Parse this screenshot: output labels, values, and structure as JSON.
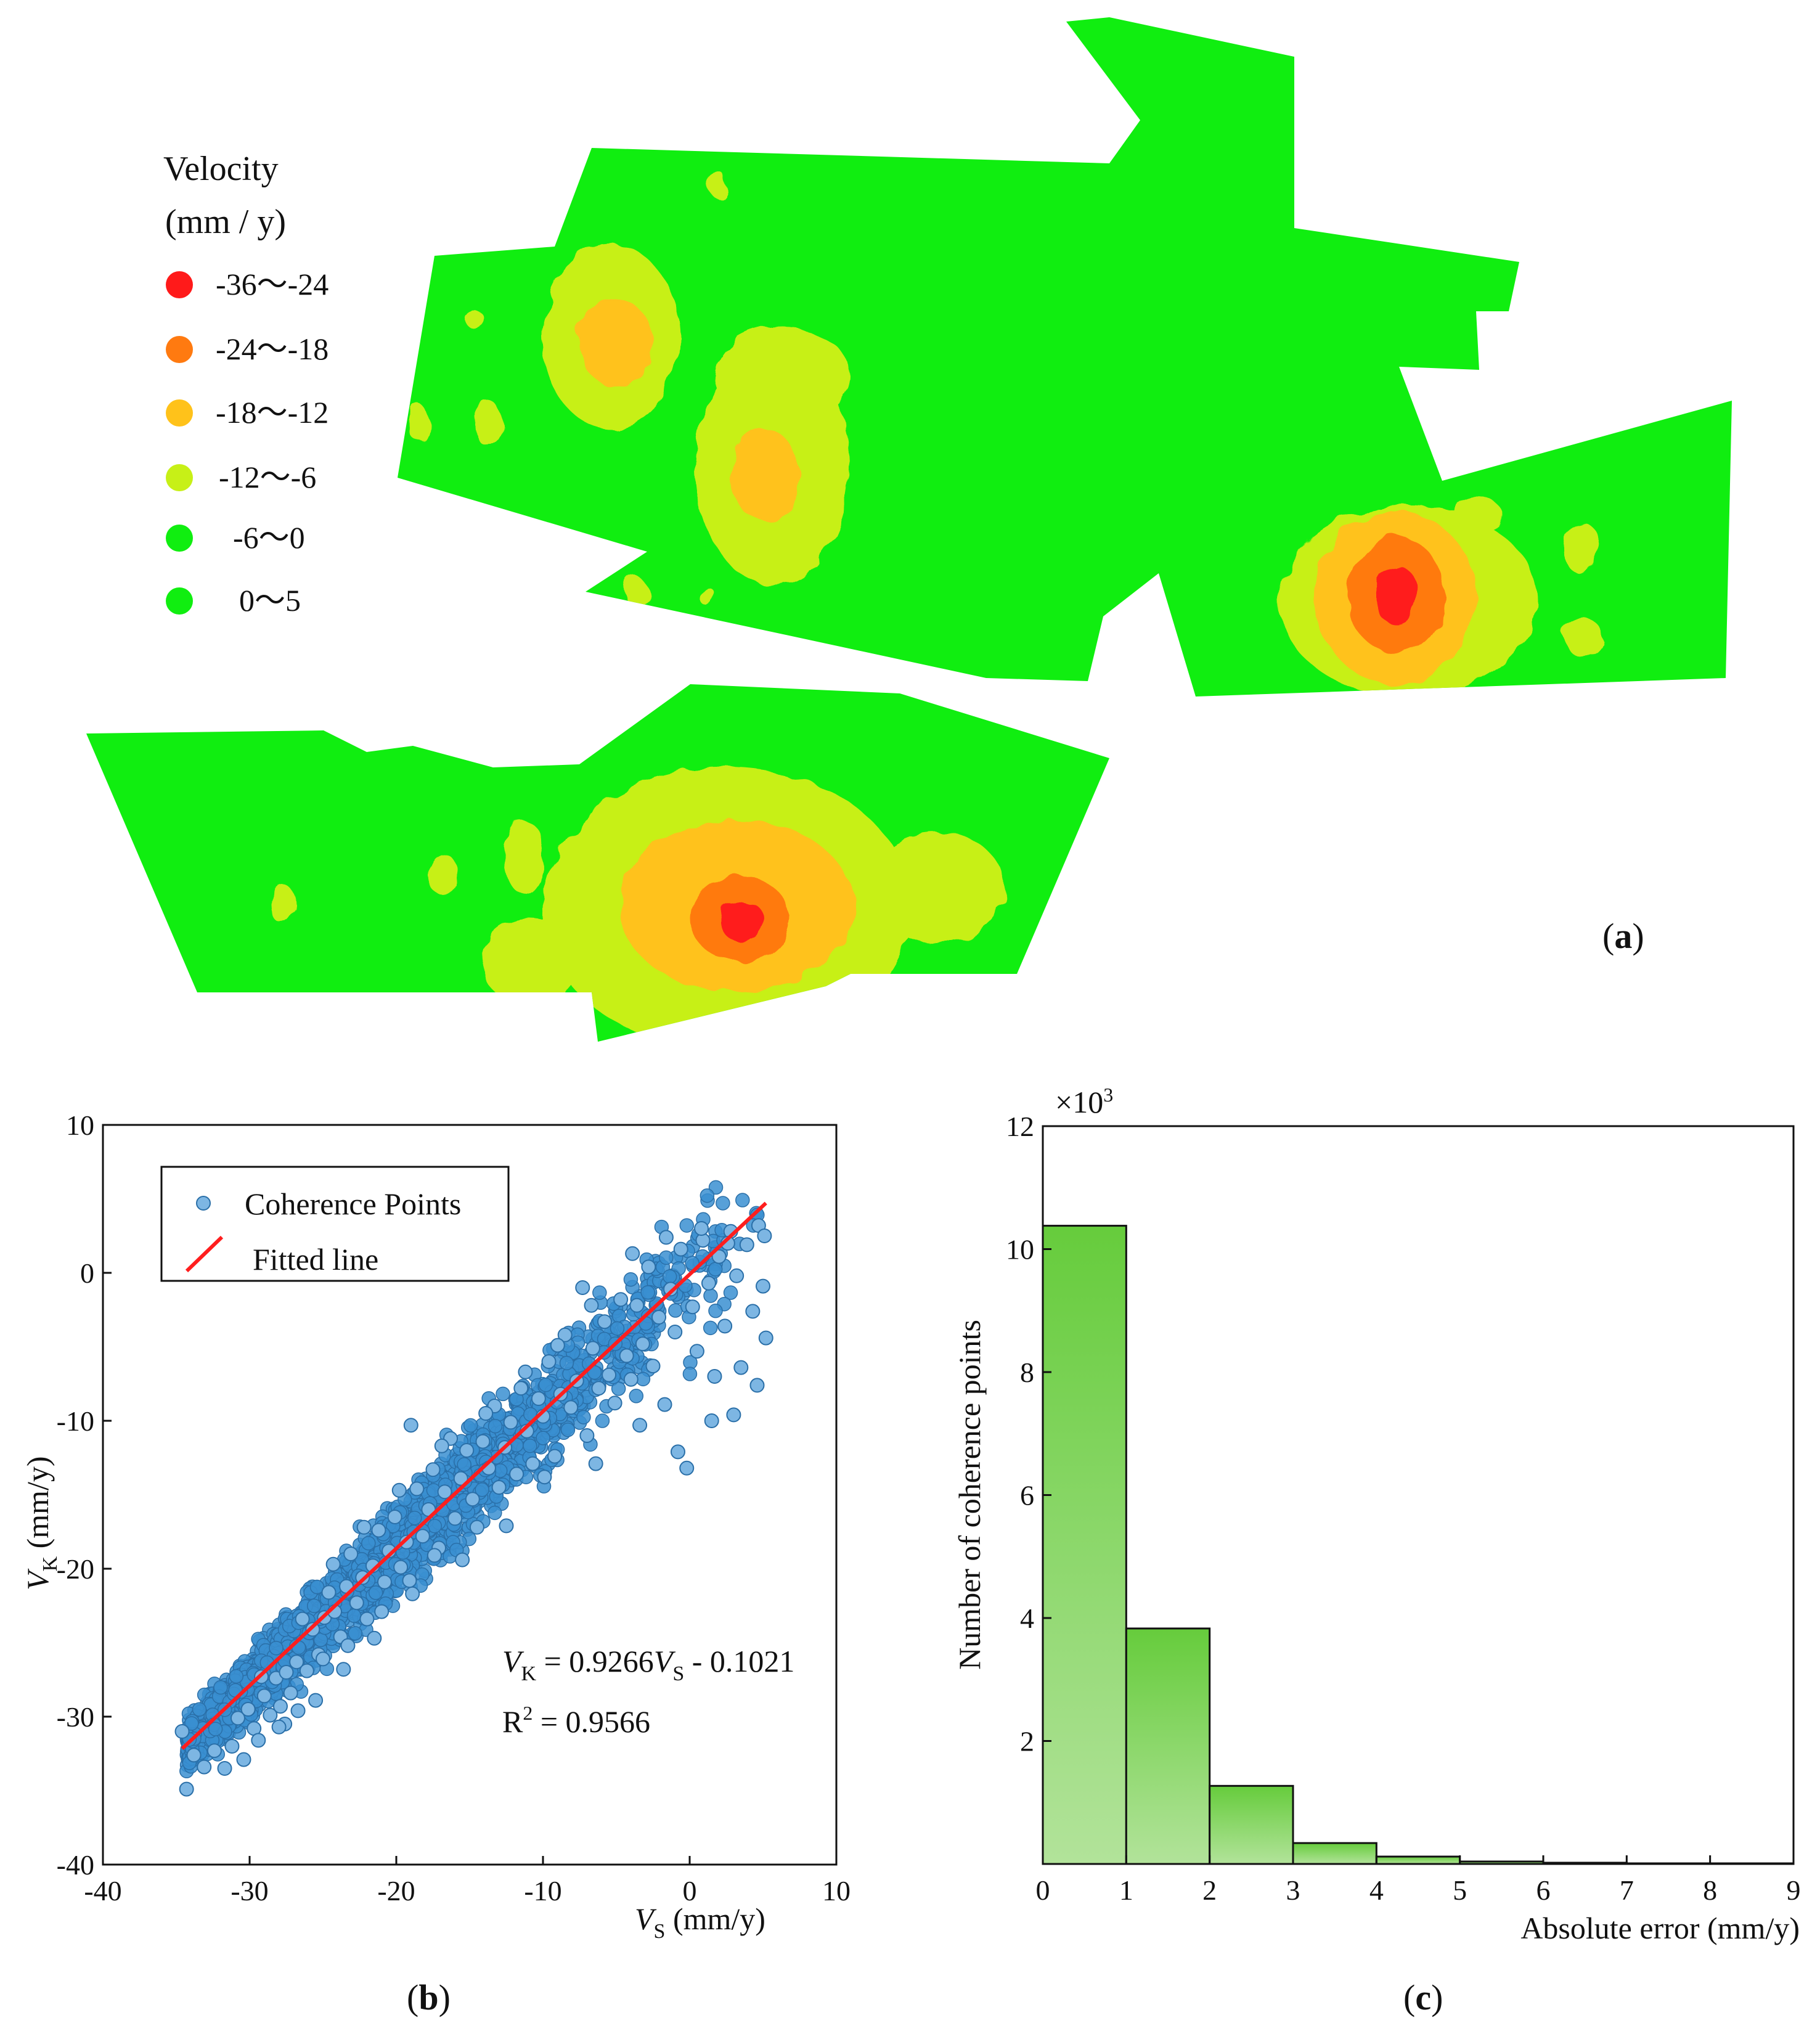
{
  "panel_a": {
    "label_open": "(",
    "label_letter": "a",
    "label_close": ")",
    "legend": {
      "title_line1": "Velocity",
      "title_line2": "(mm / y)",
      "items": [
        {
          "label": "-36～-24",
          "color": "#ff1a1a"
        },
        {
          "label": "-24～-18",
          "color": "#ff7a10"
        },
        {
          "label": "-18～-12",
          "color": "#ffc21a"
        },
        {
          "label": "-12～-6",
          "color": "#c7f017"
        },
        {
          "label": "-6～0",
          "color": "#10ee10"
        },
        {
          "label": "0～5",
          "color": "#10ee10"
        }
      ]
    },
    "colors": {
      "base": "#10ee10",
      "c_m12_6": "#c7f017",
      "c_m18_12": "#ffc21a",
      "c_m24_18": "#ff7a10",
      "c_m36_24": "#ff1a1a"
    }
  },
  "chart_data": [
    {
      "type": "scatter",
      "panel_label_open": "(",
      "panel_label_letter": "b",
      "panel_label_close": ")",
      "xlabel_main": "V",
      "xlabel_sub": "S",
      "xlabel_unit": " (mm/y)",
      "ylabel_main": "V",
      "ylabel_sub": "K",
      "ylabel_unit": " (mm/y)",
      "xlim": [
        -40,
        10
      ],
      "ylim": [
        -40,
        10
      ],
      "xticks": [
        -40,
        -30,
        -20,
        -10,
        0,
        10
      ],
      "yticks": [
        -40,
        -30,
        -20,
        -10,
        0,
        10
      ],
      "legend": [
        "Coherence Points",
        "Fitted line"
      ],
      "point_color": "#3a8fd1",
      "line_color": "#ff1e1e",
      "fit": {
        "slope": 0.9266,
        "intercept": -0.1021,
        "x_range": [
          -34.6,
          5.2
        ]
      },
      "equation": {
        "lhs_main": "V",
        "lhs_sub": "K",
        "mid": " = 0.9266",
        "rhs_main": "V",
        "rhs_sub": "S",
        "tail": " - 0.1021"
      },
      "r2": {
        "main": "R",
        "sup": "2",
        "tail": " = 0.9566"
      },
      "points": [
        [
          -34.3,
          -34.9
        ],
        [
          -34.6,
          -31.0
        ],
        [
          -33.8,
          -32.6
        ],
        [
          -33.1,
          -33.4
        ],
        [
          -32.4,
          -32.3
        ],
        [
          -31.7,
          -33.5
        ],
        [
          -31.2,
          -32.0
        ],
        [
          -30.8,
          -30.1
        ],
        [
          -30.4,
          -32.9
        ],
        [
          -30.1,
          -29.5
        ],
        [
          -29.7,
          -30.8
        ],
        [
          -29.4,
          -31.6
        ],
        [
          -29.0,
          -28.6
        ],
        [
          -28.6,
          -29.9
        ],
        [
          -28.2,
          -27.4
        ],
        [
          -27.9,
          -29.3
        ],
        [
          -27.5,
          -27.0
        ],
        [
          -27.2,
          -28.4
        ],
        [
          -26.8,
          -26.3
        ],
        [
          -26.4,
          -23.4
        ],
        [
          -26.1,
          -26.9
        ],
        [
          -25.7,
          -24.1
        ],
        [
          -25.3,
          -25.8
        ],
        [
          -24.9,
          -23.3
        ],
        [
          -24.6,
          -21.6
        ],
        [
          -24.2,
          -22.9
        ],
        [
          -23.8,
          -24.6
        ],
        [
          -23.4,
          -21.2
        ],
        [
          -23.1,
          -19.0
        ],
        [
          -22.7,
          -22.3
        ],
        [
          -22.3,
          -20.6
        ],
        [
          -22.0,
          -23.4
        ],
        [
          -21.6,
          -19.8
        ],
        [
          -21.2,
          -17.4
        ],
        [
          -20.8,
          -20.9
        ],
        [
          -20.5,
          -18.8
        ],
        [
          -20.1,
          -16.5
        ],
        [
          -19.7,
          -19.9
        ],
        [
          -19.3,
          -18.2
        ],
        [
          -19.0,
          -10.3
        ],
        [
          -18.6,
          -14.6
        ],
        [
          -18.2,
          -17.8
        ],
        [
          -17.8,
          -16.0
        ],
        [
          -17.5,
          -13.3
        ],
        [
          -17.1,
          -18.6
        ],
        [
          -16.7,
          -14.8
        ],
        [
          -16.3,
          -11.2
        ],
        [
          -16.0,
          -16.6
        ],
        [
          -15.6,
          -13.9
        ],
        [
          -15.2,
          -12.0
        ],
        [
          -14.8,
          -15.3
        ],
        [
          -14.5,
          -17.2
        ],
        [
          -14.1,
          -11.4
        ],
        [
          -13.7,
          -13.2
        ],
        [
          -13.3,
          -9.0
        ],
        [
          -13.0,
          -14.5
        ],
        [
          -12.6,
          -11.8
        ],
        [
          -12.2,
          -10.1
        ],
        [
          -11.8,
          -13.6
        ],
        [
          -11.5,
          -7.8
        ],
        [
          -11.1,
          -10.7
        ],
        [
          -10.7,
          -12.9
        ],
        [
          -10.3,
          -8.5
        ],
        [
          -10.0,
          -9.7
        ],
        [
          -9.6,
          -6.0
        ],
        [
          -9.2,
          -12.4
        ],
        [
          -8.8,
          -8.2
        ],
        [
          -8.5,
          -4.2
        ],
        [
          -8.1,
          -9.1
        ],
        [
          -7.7,
          -7.3
        ],
        [
          -7.3,
          -1.0
        ],
        [
          -7.0,
          -11.0
        ],
        [
          -6.6,
          -5.1
        ],
        [
          -6.2,
          -7.8
        ],
        [
          -5.8,
          -3.3
        ],
        [
          -5.5,
          -6.9
        ],
        [
          -5.1,
          -8.8
        ],
        [
          -4.7,
          -1.8
        ],
        [
          -4.3,
          -5.6
        ],
        [
          -4.0,
          -7.2
        ],
        [
          -3.6,
          -2.2
        ],
        [
          -3.2,
          -4.8
        ],
        [
          -2.8,
          0.4
        ],
        [
          -2.5,
          -6.3
        ],
        [
          -2.1,
          -3.0
        ],
        [
          -1.7,
          -8.9
        ],
        [
          -1.3,
          -1.1
        ],
        [
          -1.0,
          -4.0
        ],
        [
          -0.6,
          1.6
        ],
        [
          -0.2,
          -13.2
        ],
        [
          0.2,
          -2.3
        ],
        [
          0.5,
          -5.3
        ],
        [
          0.9,
          2.2
        ],
        [
          1.3,
          -0.7
        ],
        [
          1.7,
          -7.0
        ],
        [
          2.0,
          1.1
        ],
        [
          2.4,
          -3.6
        ],
        [
          2.8,
          2.8
        ],
        [
          3.2,
          -0.2
        ],
        [
          3.5,
          -6.4
        ],
        [
          3.9,
          1.9
        ],
        [
          4.3,
          -2.6
        ],
        [
          4.7,
          3.2
        ],
        [
          5.0,
          -0.9
        ],
        [
          5.2,
          -4.4
        ],
        [
          5.1,
          2.5
        ],
        [
          4.6,
          -7.6
        ],
        [
          3.0,
          -9.6
        ],
        [
          1.5,
          -10.0
        ],
        [
          -0.8,
          -12.1
        ],
        [
          -3.4,
          -10.3
        ],
        [
          -6.4,
          -12.9
        ],
        [
          -9.9,
          -13.8
        ],
        [
          -12.5,
          -17.1
        ],
        [
          -15.5,
          -19.4
        ],
        [
          -18.9,
          -21.7
        ],
        [
          -21.5,
          -24.7
        ],
        [
          -23.6,
          -26.8
        ],
        [
          -25.5,
          -28.9
        ],
        [
          -27.6,
          -30.5
        ],
        [
          -6.7,
          -2.2
        ],
        [
          -9.0,
          -4.9
        ],
        [
          -11.2,
          -6.7
        ],
        [
          -13.9,
          -9.5
        ],
        [
          -16.9,
          -11.7
        ],
        [
          -19.8,
          -14.7
        ],
        [
          -22.2,
          -17.2
        ],
        [
          -24.3,
          -19.7
        ],
        [
          -3.9,
          1.3
        ],
        [
          -1.6,
          2.4
        ],
        [
          0.8,
          3.0
        ],
        [
          2.6,
          2.0
        ],
        [
          -29.2,
          -27.3
        ],
        [
          -28.0,
          -30.7
        ],
        [
          -26.7,
          -29.6
        ],
        [
          -25.0,
          -26.1
        ],
        [
          -23.3,
          -25.2
        ],
        [
          -21.0,
          -22.9
        ],
        [
          -19.1,
          -20.8
        ],
        [
          -17.4,
          -19.1
        ]
      ]
    },
    {
      "type": "bar",
      "panel_label_open": "(",
      "panel_label_letter": "c",
      "panel_label_close": ")",
      "xlabel": "Absolute error (mm/y)",
      "ylabel": "Number of coherence points",
      "multiplier_sym": "×10",
      "multiplier_exp": "3",
      "xlim": [
        0,
        9
      ],
      "ylim": [
        0,
        12
      ],
      "xticks": [
        0,
        1,
        2,
        3,
        4,
        5,
        6,
        7,
        8,
        9
      ],
      "yticks": [
        2,
        4,
        6,
        8,
        10,
        12
      ],
      "bin_edges": [
        0,
        1,
        2,
        3,
        4,
        5,
        6,
        7,
        8,
        9
      ],
      "values": [
        10.38,
        3.83,
        1.27,
        0.34,
        0.12,
        0.04,
        0.02,
        0.01,
        0.01
      ],
      "bar_color_top": "#66cc3c",
      "bar_color_bottom": "#b2e39a"
    }
  ]
}
